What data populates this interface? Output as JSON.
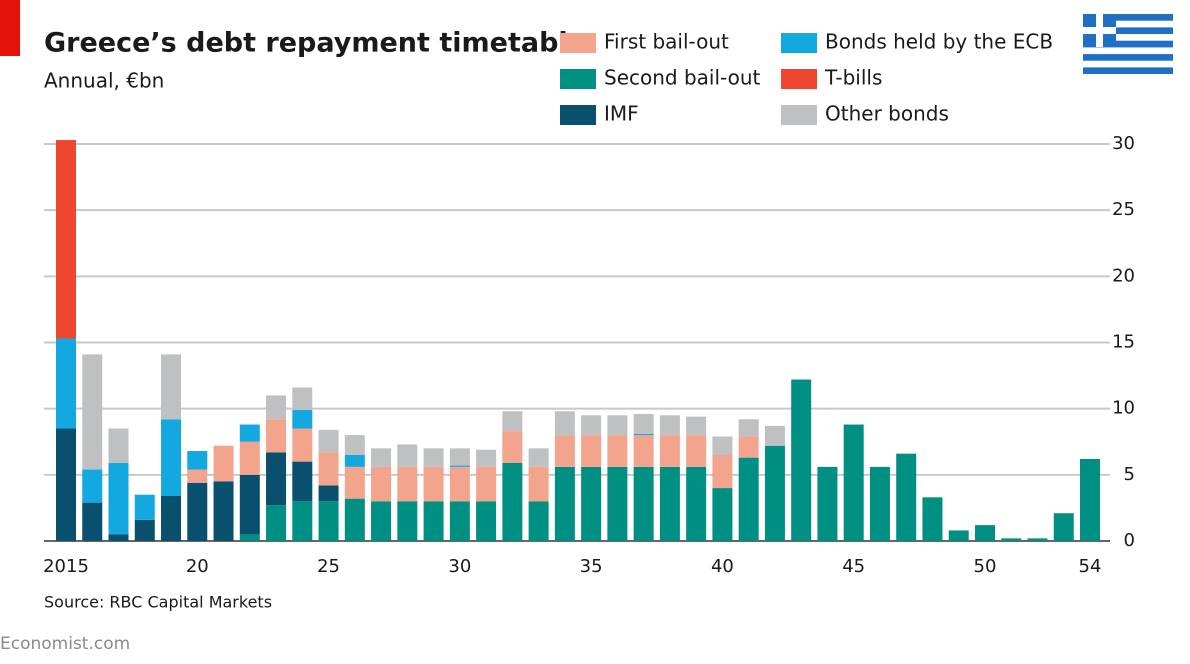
{
  "chart_data": {
    "type": "stacked_bar",
    "title": "Greece’s debt repayment timetable",
    "subtitle": "Annual, €bn",
    "source": "Source: RBC Capital Markets",
    "footer": "Economist.com",
    "categories": [
      "2015",
      null,
      null,
      null,
      null,
      "20",
      null,
      null,
      null,
      null,
      "25",
      null,
      null,
      null,
      null,
      "30",
      null,
      null,
      null,
      null,
      "35",
      null,
      null,
      null,
      null,
      "40",
      null,
      null,
      null,
      null,
      "45",
      null,
      null,
      null,
      null,
      "50",
      null,
      null,
      null,
      "54"
    ],
    "series": [
      {
        "name": "Second bail-out",
        "color": "#008f83",
        "values": [
          0,
          0,
          0,
          0,
          0,
          0,
          0,
          0.5,
          2.7,
          3.0,
          3.0,
          3.2,
          3.0,
          3.0,
          3.0,
          3.0,
          3.0,
          5.9,
          3.0,
          5.6,
          5.6,
          5.6,
          5.6,
          5.6,
          5.6,
          4.0,
          6.3,
          7.2,
          12.2,
          5.6,
          8.8,
          5.6,
          6.6,
          3.3,
          0.8,
          1.2,
          0.2,
          0.2,
          2.1,
          6.2
        ]
      },
      {
        "name": "IMF",
        "color": "#08506e",
        "values": [
          8.5,
          2.9,
          0.5,
          1.6,
          3.4,
          4.4,
          4.5,
          4.5,
          4.0,
          3.0,
          1.2,
          0,
          0,
          0,
          0,
          0,
          0,
          0,
          0,
          0,
          0,
          0,
          0,
          0,
          0,
          0,
          0,
          0,
          0,
          0,
          0,
          0,
          0,
          0,
          0,
          0,
          0,
          0,
          0,
          0
        ]
      },
      {
        "name": "First bail-out",
        "color": "#f2a48c",
        "values": [
          0,
          0,
          0,
          0,
          0,
          1.0,
          2.7,
          2.5,
          2.5,
          2.5,
          2.5,
          2.4,
          2.6,
          2.6,
          2.6,
          2.6,
          2.6,
          2.4,
          2.6,
          2.4,
          2.4,
          2.4,
          2.4,
          2.4,
          2.4,
          2.5,
          1.6,
          0,
          0,
          0,
          0,
          0,
          0,
          0,
          0,
          0,
          0,
          0,
          0,
          0
        ]
      },
      {
        "name": "Bonds held by the ECB",
        "color": "#13a8e0",
        "values": [
          6.8,
          2.5,
          5.4,
          1.9,
          5.8,
          1.4,
          0,
          1.3,
          0,
          1.4,
          0,
          0.9,
          0,
          0,
          0,
          0.1,
          0,
          0,
          0,
          0,
          0,
          0,
          0.1,
          0,
          0,
          0,
          0,
          0,
          0,
          0,
          0,
          0,
          0,
          0,
          0,
          0,
          0,
          0,
          0,
          0
        ]
      },
      {
        "name": "Other bonds",
        "color": "#bfc0c2",
        "values": [
          0,
          8.7,
          2.6,
          0,
          4.9,
          0,
          0,
          0,
          1.8,
          1.7,
          1.7,
          1.5,
          1.4,
          1.7,
          1.4,
          1.3,
          1.3,
          1.5,
          1.4,
          1.8,
          1.5,
          1.5,
          1.5,
          1.5,
          1.4,
          1.4,
          1.3,
          1.5,
          0,
          0,
          0,
          0,
          0,
          0,
          0,
          0,
          0,
          0,
          0,
          0
        ]
      },
      {
        "name": "T-bills",
        "color": "#ef4630",
        "values": [
          15.0,
          0,
          0,
          0,
          0,
          0,
          0,
          0,
          0,
          0,
          0,
          0,
          0,
          0,
          0,
          0,
          0,
          0,
          0,
          0,
          0,
          0,
          0,
          0,
          0,
          0,
          0,
          0,
          0,
          0,
          0,
          0,
          0,
          0,
          0,
          0,
          0,
          0,
          0,
          0
        ]
      }
    ],
    "ylim": [
      0,
      30
    ],
    "yticks": [
      0,
      5,
      10,
      15,
      20,
      25,
      30
    ],
    "grid": true,
    "y_axis_side": "right"
  }
}
